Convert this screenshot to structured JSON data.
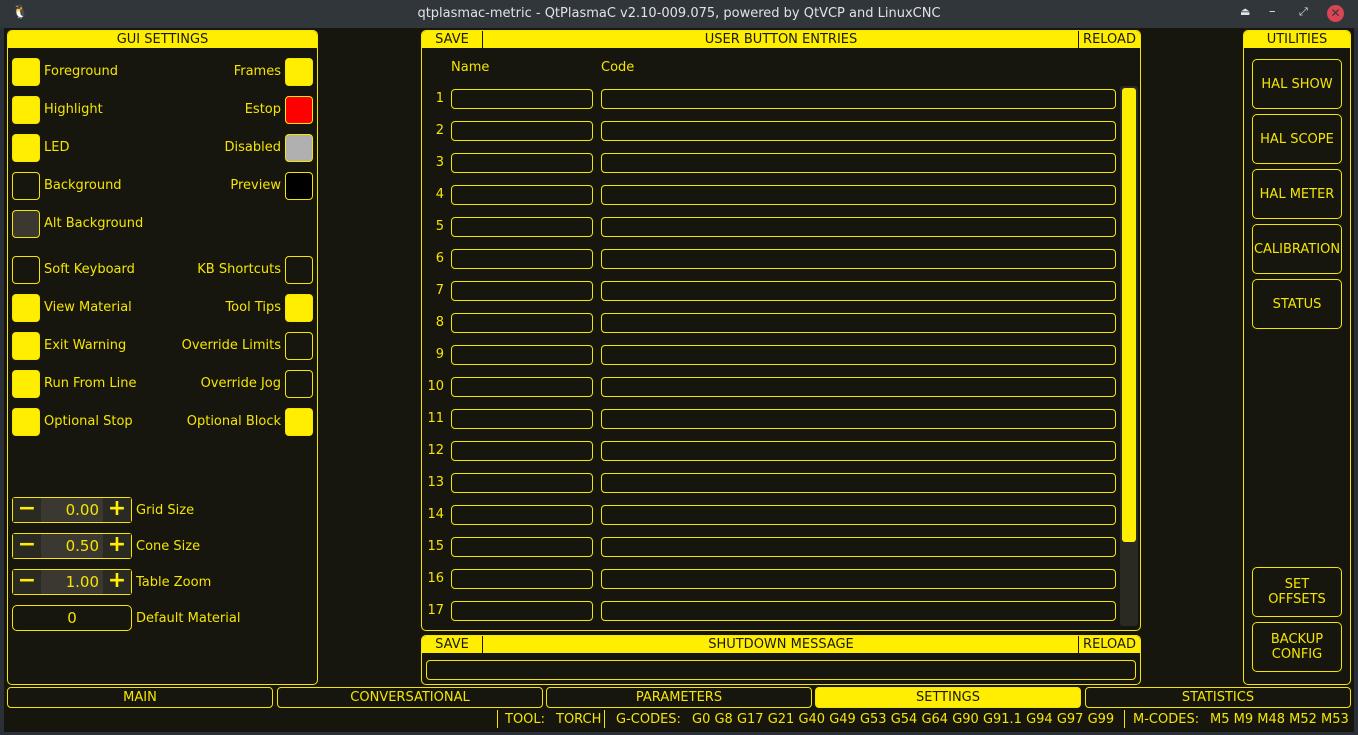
{
  "window": {
    "title": "qtplasmac-metric - QtPlasmaC v2.10-009.075, powered by QtVCP and LinuxCNC"
  },
  "colors": {
    "accent": "#ffee00",
    "background": "#16150e",
    "estop": "#ff0000",
    "disabled": "#b0b0b0",
    "preview": "#000000",
    "alt_background": "#3a3830"
  },
  "gui_settings": {
    "title": "GUI SETTINGS",
    "colors_left": [
      {
        "label": "Foreground",
        "color": "#ffee00"
      },
      {
        "label": "Highlight",
        "color": "#ffee00"
      },
      {
        "label": "LED",
        "color": "#ffee00"
      },
      {
        "label": "Background",
        "color": "#16150e"
      },
      {
        "label": "Alt Background",
        "color": "#3a3830"
      }
    ],
    "colors_right": [
      {
        "label": "Frames",
        "color": "#ffee00"
      },
      {
        "label": "Estop",
        "color": "#ff0000"
      },
      {
        "label": "Disabled",
        "color": "#b0b0b0"
      },
      {
        "label": "Preview",
        "color": "#000000"
      }
    ],
    "checks_left": [
      {
        "label": "Soft Keyboard",
        "checked": false
      },
      {
        "label": "View Material",
        "checked": true
      },
      {
        "label": "Exit Warning",
        "checked": true
      },
      {
        "label": "Run From Line",
        "checked": true
      },
      {
        "label": "Optional Stop",
        "checked": true
      }
    ],
    "checks_right": [
      {
        "label": "KB Shortcuts",
        "checked": false
      },
      {
        "label": "Tool Tips",
        "checked": true
      },
      {
        "label": "Override Limits",
        "checked": false
      },
      {
        "label": "Override Jog",
        "checked": false
      },
      {
        "label": "Optional Block",
        "checked": true
      }
    ],
    "spinners": [
      {
        "label": "Grid Size",
        "value": "0.00"
      },
      {
        "label": "Cone Size",
        "value": "0.50"
      },
      {
        "label": "Table Zoom",
        "value": "1.00"
      }
    ],
    "minus": "−",
    "plus": "+",
    "default_material": {
      "label": "Default Material",
      "value": "0"
    }
  },
  "user_buttons": {
    "save": "SAVE",
    "title": "USER BUTTON ENTRIES",
    "reload": "RELOAD",
    "col_name": "Name",
    "col_code": "Code",
    "rows": [
      "1",
      "2",
      "3",
      "4",
      "5",
      "6",
      "7",
      "8",
      "9",
      "10",
      "11",
      "12",
      "13",
      "14",
      "15",
      "16",
      "17"
    ]
  },
  "shutdown": {
    "save": "SAVE",
    "title": "SHUTDOWN MESSAGE",
    "reload": "RELOAD",
    "value": ""
  },
  "utilities": {
    "title": "UTILITIES",
    "buttons": [
      "HAL SHOW",
      "HAL SCOPE",
      "HAL METER",
      "CALIBRATION",
      "STATUS"
    ],
    "bottom_buttons": [
      "SET\nOFFSETS",
      "BACKUP\nCONFIG"
    ]
  },
  "tabs": [
    {
      "label": "MAIN",
      "active": false
    },
    {
      "label": "CONVERSATIONAL",
      "active": false
    },
    {
      "label": "PARAMETERS",
      "active": false
    },
    {
      "label": "SETTINGS",
      "active": true
    },
    {
      "label": "STATISTICS",
      "active": false
    }
  ],
  "status": {
    "tool_label": "TOOL:",
    "tool": "TORCH",
    "gcodes_label": "G-CODES:",
    "gcodes": "G0 G8 G17 G21 G40 G49 G53 G54 G64 G90 G91.1 G94 G97 G99",
    "mcodes_label": "M-CODES:",
    "mcodes": "M5 M9 M48 M52 M53"
  }
}
